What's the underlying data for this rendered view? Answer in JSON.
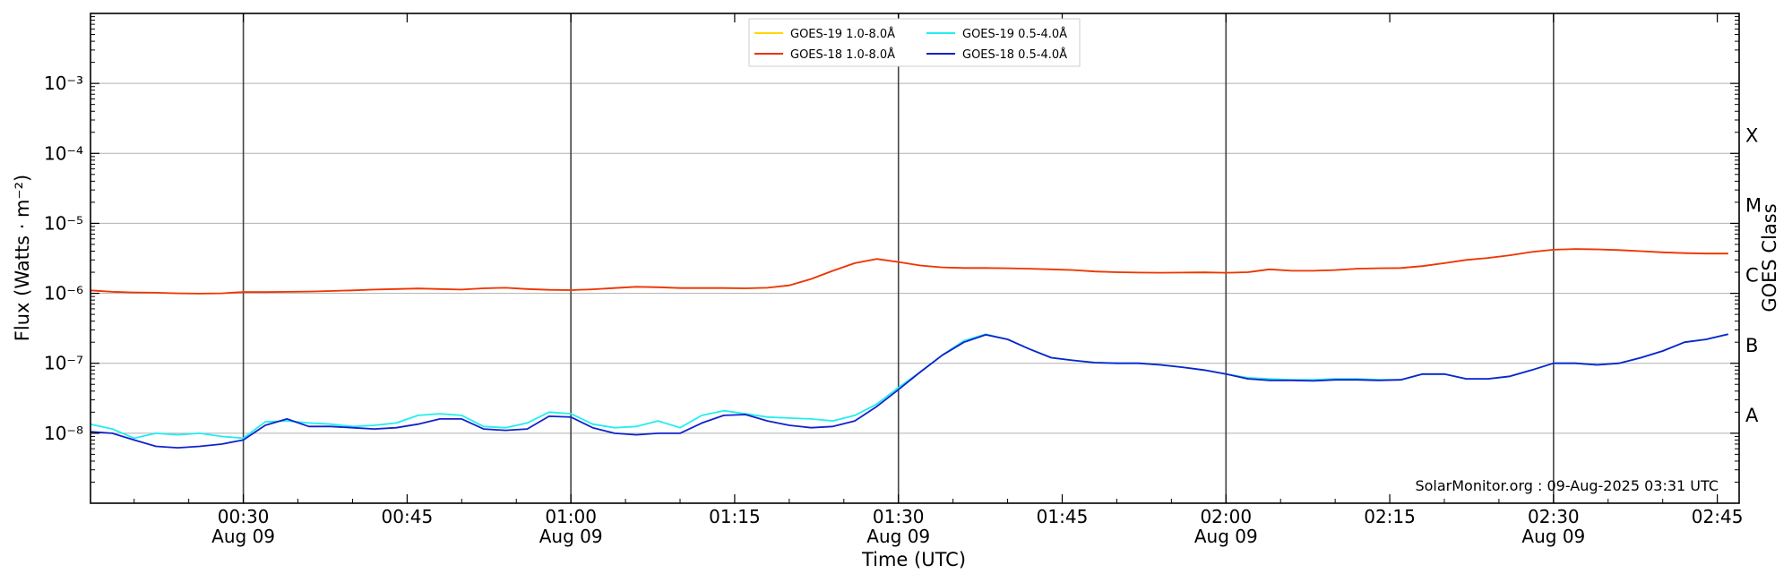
{
  "chart_data": {
    "type": "line",
    "xlabel": "Time (UTC)",
    "ylabel": "Flux (Watts · m⁻²)",
    "y2label": "GOES Class",
    "xlim": [
      "00:16",
      "02:47"
    ],
    "ylim": [
      1e-09,
      0.01
    ],
    "yscale": "log",
    "grid": "horizontal",
    "legend_position": "top-center",
    "x_ticks": [
      {
        "time": "00:30",
        "label": "00:30",
        "sublabel": "Aug 09",
        "vline": true
      },
      {
        "time": "00:45",
        "label": "00:45",
        "sublabel": "",
        "vline": false
      },
      {
        "time": "01:00",
        "label": "01:00",
        "sublabel": "Aug 09",
        "vline": true
      },
      {
        "time": "01:15",
        "label": "01:15",
        "sublabel": "",
        "vline": false
      },
      {
        "time": "01:30",
        "label": "01:30",
        "sublabel": "Aug 09",
        "vline": true
      },
      {
        "time": "01:45",
        "label": "01:45",
        "sublabel": "",
        "vline": false
      },
      {
        "time": "02:00",
        "label": "02:00",
        "sublabel": "Aug 09",
        "vline": true
      },
      {
        "time": "02:15",
        "label": "02:15",
        "sublabel": "",
        "vline": false
      },
      {
        "time": "02:30",
        "label": "02:30",
        "sublabel": "Aug 09",
        "vline": true
      },
      {
        "time": "02:45",
        "label": "02:45",
        "sublabel": "",
        "vline": false
      }
    ],
    "y_ticks": [
      {
        "exp": -8,
        "label": "10⁻⁸"
      },
      {
        "exp": -7,
        "label": "10⁻⁷"
      },
      {
        "exp": -6,
        "label": "10⁻⁶"
      },
      {
        "exp": -5,
        "label": "10⁻⁵"
      },
      {
        "exp": -4,
        "label": "10⁻⁴"
      },
      {
        "exp": -3,
        "label": "10⁻³"
      }
    ],
    "goes_classes": [
      {
        "label": "A",
        "flux": 1.8e-08
      },
      {
        "label": "B",
        "flux": 1.8e-07
      },
      {
        "label": "C",
        "flux": 1.8e-06
      },
      {
        "label": "M",
        "flux": 1.8e-05
      },
      {
        "label": "X",
        "flux": 0.00018
      }
    ],
    "watermark": "SolarMonitor.org : 09-Aug-2025 03:31 UTC",
    "x": [
      "00:16",
      "00:18",
      "00:20",
      "00:22",
      "00:24",
      "00:26",
      "00:28",
      "00:30",
      "00:32",
      "00:34",
      "00:36",
      "00:38",
      "00:40",
      "00:42",
      "00:44",
      "00:46",
      "00:48",
      "00:50",
      "00:52",
      "00:54",
      "00:56",
      "00:58",
      "01:00",
      "01:02",
      "01:04",
      "01:06",
      "01:08",
      "01:10",
      "01:12",
      "01:14",
      "01:16",
      "01:18",
      "01:20",
      "01:22",
      "01:24",
      "01:26",
      "01:28",
      "01:30",
      "01:32",
      "01:34",
      "01:36",
      "01:38",
      "01:40",
      "01:42",
      "01:44",
      "01:46",
      "01:48",
      "01:50",
      "01:52",
      "01:54",
      "01:56",
      "01:58",
      "02:00",
      "02:02",
      "02:04",
      "02:06",
      "02:08",
      "02:10",
      "02:12",
      "02:14",
      "02:16",
      "02:18",
      "02:20",
      "02:22",
      "02:24",
      "02:26",
      "02:28",
      "02:30",
      "02:32",
      "02:34",
      "02:36",
      "02:38",
      "02:40",
      "02:42",
      "02:44",
      "02:46"
    ],
    "series": [
      {
        "name": "GOES-19 1.0-8.0Å",
        "color": "#ffd700",
        "values": [
          1.1e-06,
          1.05e-06,
          1.03e-06,
          1.02e-06,
          1e-06,
          9.9e-07,
          1e-06,
          1.04e-06,
          1.04e-06,
          1.05e-06,
          1.06e-06,
          1.08e-06,
          1.1e-06,
          1.13e-06,
          1.15e-06,
          1.17e-06,
          1.15e-06,
          1.13e-06,
          1.18e-06,
          1.2e-06,
          1.15e-06,
          1.12e-06,
          1.11e-06,
          1.14e-06,
          1.19e-06,
          1.24e-06,
          1.22e-06,
          1.19e-06,
          1.19e-06,
          1.19e-06,
          1.18e-06,
          1.2e-06,
          1.3e-06,
          1.6e-06,
          2.1e-06,
          2.7e-06,
          3.1e-06,
          2.8e-06,
          2.5e-06,
          2.35e-06,
          2.3e-06,
          2.3e-06,
          2.28e-06,
          2.25e-06,
          2.2e-06,
          2.15e-06,
          2.05e-06,
          2e-06,
          1.98e-06,
          1.97e-06,
          1.98e-06,
          1.99e-06,
          1.97e-06,
          2e-06,
          2.2e-06,
          2.1e-06,
          2.1e-06,
          2.15e-06,
          2.25e-06,
          2.28e-06,
          2.3e-06,
          2.45e-06,
          2.7e-06,
          3e-06,
          3.2e-06,
          3.5e-06,
          3.9e-06,
          4.2e-06,
          4.3e-06,
          4.25e-06,
          4.15e-06,
          4e-06,
          3.85e-06,
          3.75e-06,
          3.7e-06,
          3.7e-06
        ]
      },
      {
        "name": "GOES-18 1.0-8.0Å",
        "color": "#ee3311",
        "values": [
          1.1e-06,
          1.05e-06,
          1.03e-06,
          1.02e-06,
          1e-06,
          9.9e-07,
          1e-06,
          1.04e-06,
          1.04e-06,
          1.05e-06,
          1.06e-06,
          1.08e-06,
          1.1e-06,
          1.13e-06,
          1.15e-06,
          1.17e-06,
          1.15e-06,
          1.13e-06,
          1.18e-06,
          1.2e-06,
          1.15e-06,
          1.12e-06,
          1.11e-06,
          1.14e-06,
          1.19e-06,
          1.24e-06,
          1.22e-06,
          1.19e-06,
          1.19e-06,
          1.19e-06,
          1.18e-06,
          1.2e-06,
          1.3e-06,
          1.6e-06,
          2.1e-06,
          2.7e-06,
          3.1e-06,
          2.8e-06,
          2.5e-06,
          2.35e-06,
          2.3e-06,
          2.3e-06,
          2.28e-06,
          2.25e-06,
          2.2e-06,
          2.15e-06,
          2.05e-06,
          2e-06,
          1.98e-06,
          1.97e-06,
          1.98e-06,
          1.99e-06,
          1.97e-06,
          2e-06,
          2.2e-06,
          2.1e-06,
          2.1e-06,
          2.15e-06,
          2.25e-06,
          2.28e-06,
          2.3e-06,
          2.45e-06,
          2.7e-06,
          3e-06,
          3.2e-06,
          3.5e-06,
          3.9e-06,
          4.2e-06,
          4.3e-06,
          4.25e-06,
          4.15e-06,
          4e-06,
          3.85e-06,
          3.75e-06,
          3.7e-06,
          3.7e-06
        ]
      },
      {
        "name": "GOES-19 0.5-4.0Å",
        "color": "#22eeee",
        "values": [
          1.35e-08,
          1.15e-08,
          8.5e-09,
          1e-08,
          9.5e-09,
          1e-08,
          9e-09,
          8.5e-09,
          1.45e-08,
          1.5e-08,
          1.4e-08,
          1.35e-08,
          1.25e-08,
          1.3e-08,
          1.4e-08,
          1.8e-08,
          1.9e-08,
          1.8e-08,
          1.25e-08,
          1.2e-08,
          1.4e-08,
          2e-08,
          1.9e-08,
          1.35e-08,
          1.2e-08,
          1.25e-08,
          1.5e-08,
          1.2e-08,
          1.8e-08,
          2.1e-08,
          1.9e-08,
          1.7e-08,
          1.65e-08,
          1.6e-08,
          1.5e-08,
          1.8e-08,
          2.6e-08,
          4.5e-08,
          7.5e-08,
          1.3e-07,
          2.1e-07,
          2.6e-07,
          2.2e-07,
          1.6e-07,
          1.2e-07,
          1.1e-07,
          1.02e-07,
          1e-07,
          1e-07,
          9.5e-08,
          8.8e-08,
          8e-08,
          7e-08,
          6.2e-08,
          6e-08,
          5.8e-08,
          5.8e-08,
          6e-08,
          6e-08,
          5.8e-08,
          5.8e-08,
          7e-08,
          7e-08,
          6e-08,
          6e-08,
          6.5e-08,
          8e-08,
          1e-07,
          1e-07,
          9.5e-08,
          1e-07,
          1.2e-07,
          1.5e-07,
          2e-07,
          2.2e-07,
          2.6e-07
        ]
      },
      {
        "name": "GOES-18 0.5-4.0Å",
        "color": "#1122cc",
        "values": [
          1.05e-08,
          1e-08,
          8e-09,
          6.5e-09,
          6.2e-09,
          6.5e-09,
          7e-09,
          8e-09,
          1.3e-08,
          1.6e-08,
          1.25e-08,
          1.25e-08,
          1.2e-08,
          1.15e-08,
          1.2e-08,
          1.35e-08,
          1.6e-08,
          1.6e-08,
          1.15e-08,
          1.1e-08,
          1.15e-08,
          1.75e-08,
          1.7e-08,
          1.2e-08,
          1e-08,
          9.5e-09,
          1e-08,
          1e-08,
          1.4e-08,
          1.8e-08,
          1.85e-08,
          1.5e-08,
          1.3e-08,
          1.2e-08,
          1.25e-08,
          1.5e-08,
          2.4e-08,
          4.2e-08,
          7.5e-08,
          1.3e-07,
          2e-07,
          2.55e-07,
          2.2e-07,
          1.6e-07,
          1.2e-07,
          1.1e-07,
          1.02e-07,
          1e-07,
          1e-07,
          9.5e-08,
          8.8e-08,
          8e-08,
          7e-08,
          6e-08,
          5.7e-08,
          5.7e-08,
          5.6e-08,
          5.8e-08,
          5.8e-08,
          5.7e-08,
          5.8e-08,
          7e-08,
          7e-08,
          6e-08,
          6e-08,
          6.5e-08,
          8e-08,
          1e-07,
          1e-07,
          9.5e-08,
          1e-07,
          1.2e-07,
          1.5e-07,
          2e-07,
          2.2e-07,
          2.6e-07
        ]
      }
    ]
  }
}
